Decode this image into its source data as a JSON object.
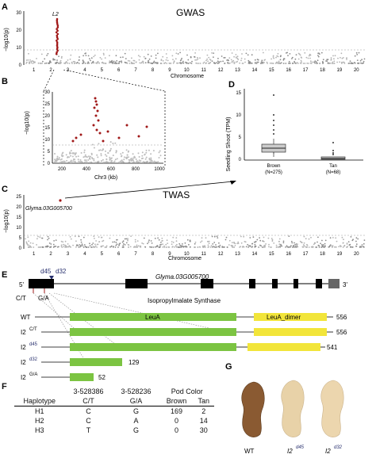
{
  "panels": {
    "A": "A",
    "B": "B",
    "C": "C",
    "D": "D",
    "E": "E",
    "F": "F",
    "G": "G"
  },
  "gwas": {
    "title": "GWAS",
    "ylabel": "−log10(p)",
    "xlabel": "Chromosome",
    "yticks": [
      "0",
      "10",
      "20",
      "30"
    ],
    "peak_label": "L2",
    "chromosomes": [
      "1",
      "2",
      "3",
      "4",
      "5",
      "6",
      "7",
      "8",
      "9",
      "10",
      "11",
      "12",
      "13",
      "14",
      "15",
      "16",
      "17",
      "18",
      "19",
      "20"
    ]
  },
  "zoom": {
    "ylabel": "−log10(p)",
    "xlabel": "Chr3 (kb)",
    "yticks": [
      "0",
      "5",
      "10",
      "15",
      "20",
      "25",
      "30"
    ],
    "xticks": [
      "200",
      "400",
      "600",
      "800",
      "1000"
    ]
  },
  "twas": {
    "title": "TWAS",
    "ylabel": "−log10(p)",
    "xlabel": "Chromosome",
    "yticks": [
      "0",
      "5",
      "10",
      "15",
      "20",
      "25"
    ],
    "gene_label": "Glyma.03G005700",
    "chromosomes": [
      "1",
      "2",
      "3",
      "4",
      "5",
      "6",
      "7",
      "8",
      "9",
      "10",
      "11",
      "12",
      "13",
      "14",
      "15",
      "16",
      "17",
      "18",
      "19",
      "20"
    ]
  },
  "boxplot": {
    "ylabel": "Seedling Shoot (TPM)",
    "yticks": [
      "0",
      "5",
      "10",
      "15"
    ],
    "groups": [
      {
        "name": "Brown",
        "n": "(N=275)"
      },
      {
        "name": "Tan",
        "n": "(N=68)"
      }
    ]
  },
  "gene": {
    "five_prime": "5'",
    "three_prime": "3'",
    "name": "Glyma.03G005700",
    "del1": "d45",
    "del2": "d32",
    "snp1": "C/T",
    "snp2": "G/A",
    "protein": "Isopropylmalate Synthase",
    "domain1": "LeuA",
    "domain2": "LeuA_dimer",
    "rows": [
      {
        "base": "WT",
        "sup": "",
        "length": "556"
      },
      {
        "base": "I2",
        "sup": "C/T",
        "length": "556"
      },
      {
        "base": "I2",
        "sup": "d45",
        "length": "541"
      },
      {
        "base": "I2",
        "sup": "d32",
        "length": "129"
      },
      {
        "base": "I2",
        "sup": "G/A",
        "length": "52"
      }
    ]
  },
  "table": {
    "header1": [
      "",
      "3-528386",
      "3-528236",
      "Pod Color"
    ],
    "header2": [
      "Haplotype",
      "C/T",
      "G/A",
      "Brown",
      "Tan"
    ],
    "rows": [
      [
        "H1",
        "C",
        "G",
        "169",
        "2"
      ],
      [
        "H2",
        "C",
        "A",
        "0",
        "14"
      ],
      [
        "H3",
        "T",
        "G",
        "0",
        "30"
      ]
    ]
  },
  "pods": {
    "labels": [
      {
        "base": "WT",
        "sup": ""
      },
      {
        "base": "I2",
        "sup": "d45"
      },
      {
        "base": "I2",
        "sup": "d32"
      }
    ],
    "colors": [
      "#8a5a32",
      "#e8d2a8",
      "#ecd6ae"
    ]
  },
  "colors": {
    "hit": "#a01818",
    "green": "#7cc442",
    "yellow": "#f2e53a",
    "blue": "#28306e"
  }
}
